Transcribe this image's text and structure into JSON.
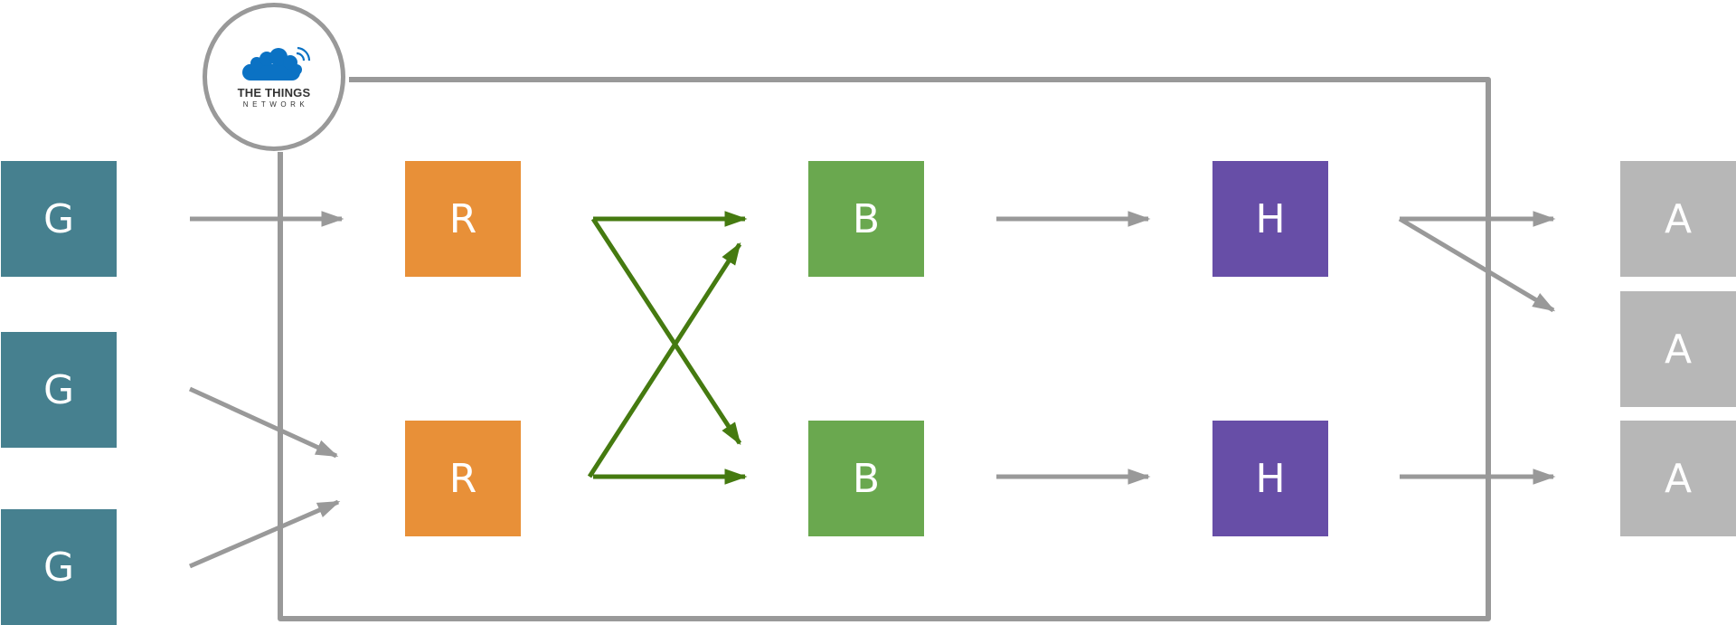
{
  "colors": {
    "gateway": "#46808f",
    "router": "#e89038",
    "broker": "#6aa84f",
    "handler": "#674ea7",
    "application": "#b7b7b7",
    "connector": "#999999",
    "broker_link": "#457a10",
    "logo_cloud": "#0b72c4"
  },
  "logo": {
    "icon": "cloud-antenna-icon",
    "line1": "THE THINGS",
    "line2": "NETWORK"
  },
  "nodes": {
    "gateways": [
      {
        "label": "G"
      },
      {
        "label": "G"
      },
      {
        "label": "G"
      }
    ],
    "routers": [
      {
        "label": "R"
      },
      {
        "label": "R"
      }
    ],
    "brokers": [
      {
        "label": "B"
      },
      {
        "label": "B"
      }
    ],
    "handlers": [
      {
        "label": "H"
      },
      {
        "label": "H"
      }
    ],
    "applications": [
      {
        "label": "A"
      },
      {
        "label": "A"
      },
      {
        "label": "A"
      }
    ]
  }
}
